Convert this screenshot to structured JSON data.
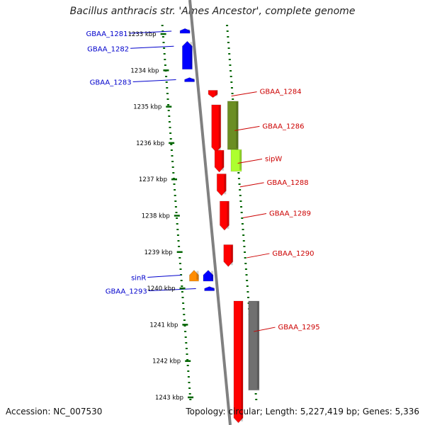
{
  "title": "Bacillus anthracis str. 'Ames Ancestor', complete genome",
  "footer": {
    "accession": "Accession: NC_007530",
    "summary": "Topology: circular; Length: 5,227,419 bp; Genes: 5,336"
  },
  "colors": {
    "forward_label": "#cc0000",
    "reverse_label": "#0000cc",
    "tick": "#006400",
    "backbone": "#808080",
    "red": "#ff0000",
    "blue": "#0000ff",
    "orange": "#ff8c00",
    "olive": "#6b8e23",
    "lime": "#adff2f",
    "gray": "#707070"
  },
  "scale": {
    "unit": "kbp",
    "ticks": [
      {
        "kbp": 1233,
        "label": "1233 kbp"
      },
      {
        "kbp": 1234,
        "label": "1234 kbp"
      },
      {
        "kbp": 1235,
        "label": "1235 kbp"
      },
      {
        "kbp": 1236,
        "label": "1236 kbp"
      },
      {
        "kbp": 1237,
        "label": "1237 kbp"
      },
      {
        "kbp": 1238,
        "label": "1238 kbp"
      },
      {
        "kbp": 1239,
        "label": "1239 kbp"
      },
      {
        "kbp": 1240,
        "label": "1240 kbp"
      },
      {
        "kbp": 1241,
        "label": "1241 kbp"
      },
      {
        "kbp": 1242,
        "label": "1242 kbp"
      },
      {
        "kbp": 1243,
        "label": "1243 kbp"
      }
    ]
  },
  "genes": [
    {
      "id": "GBAA_1281",
      "label": "GBAA_1281",
      "strand": "reverse",
      "start_kbp": 1232.85,
      "end_kbp": 1232.98,
      "color": "blue"
    },
    {
      "id": "GBAA_1282",
      "label": "GBAA_1282",
      "strand": "reverse",
      "start_kbp": 1233.2,
      "end_kbp": 1233.97,
      "color": "blue"
    },
    {
      "id": "GBAA_1283",
      "label": "GBAA_1283",
      "strand": "reverse",
      "start_kbp": 1234.2,
      "end_kbp": 1234.27,
      "color": "blue"
    },
    {
      "id": "GBAA_1284",
      "label": "GBAA_1284",
      "strand": "forward",
      "start_kbp": 1234.55,
      "end_kbp": 1234.75,
      "color": "red"
    },
    {
      "id": "GBAA_1286",
      "label": "GBAA_1286",
      "strand": "forward",
      "start_kbp": 1234.95,
      "end_kbp": 1236.25,
      "color": "red"
    },
    {
      "id": "GBAA_1286_CDS",
      "label": "",
      "strand": "forward_outer",
      "start_kbp": 1234.85,
      "end_kbp": 1236.18,
      "color": "olive"
    },
    {
      "id": "sipW",
      "label": "sipW",
      "strand": "forward",
      "start_kbp": 1236.2,
      "end_kbp": 1236.8,
      "color": "red"
    },
    {
      "id": "sipW_CDS",
      "label": "",
      "strand": "forward_outer",
      "start_kbp": 1236.18,
      "end_kbp": 1236.78,
      "color": "lime"
    },
    {
      "id": "GBAA_1288",
      "label": "GBAA_1288",
      "strand": "forward",
      "start_kbp": 1236.85,
      "end_kbp": 1237.45,
      "color": "red"
    },
    {
      "id": "GBAA_1289",
      "label": "GBAA_1289",
      "strand": "forward",
      "start_kbp": 1237.6,
      "end_kbp": 1238.4,
      "color": "red"
    },
    {
      "id": "GBAA_1290",
      "label": "GBAA_1290",
      "strand": "forward",
      "start_kbp": 1238.8,
      "end_kbp": 1239.4,
      "color": "red"
    },
    {
      "id": "sinR",
      "label": "sinR",
      "strand": "reverse_outer",
      "start_kbp": 1239.5,
      "end_kbp": 1239.8,
      "color": "orange"
    },
    {
      "id": "sinR_gene",
      "label": "",
      "strand": "reverse",
      "start_kbp": 1239.5,
      "end_kbp": 1239.8,
      "color": "blue"
    },
    {
      "id": "GBAA_1293",
      "label": "GBAA_1293",
      "strand": "reverse",
      "start_kbp": 1239.95,
      "end_kbp": 1240.05,
      "color": "blue"
    },
    {
      "id": "GBAA_1295",
      "label": "GBAA_1295",
      "strand": "forward",
      "start_kbp": 1240.35,
      "end_kbp": 1243.7,
      "color": "red"
    },
    {
      "id": "GBAA_1295_CDS",
      "label": "",
      "strand": "forward_outer",
      "start_kbp": 1240.35,
      "end_kbp": 1242.8,
      "color": "gray"
    }
  ]
}
